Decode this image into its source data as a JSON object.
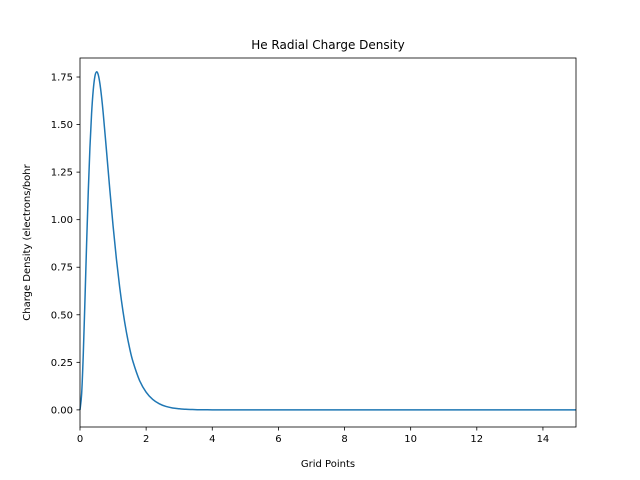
{
  "chart_data": {
    "type": "line",
    "title": "He Radial Charge Density",
    "xlabel": "Grid Points",
    "ylabel": "Charge Density (electrons/bohr",
    "xlim": [
      0,
      15
    ],
    "ylim": [
      -0.09,
      1.85
    ],
    "xticks": [
      0,
      2,
      4,
      6,
      8,
      10,
      12,
      14
    ],
    "yticks": [
      0.0,
      0.25,
      0.5,
      0.75,
      1.0,
      1.25,
      1.5,
      1.75
    ],
    "xtick_labels": [
      "0",
      "2",
      "4",
      "6",
      "8",
      "10",
      "12",
      "14"
    ],
    "ytick_labels": [
      "0.00",
      "0.25",
      "0.50",
      "0.75",
      "1.00",
      "1.25",
      "1.50",
      "1.75"
    ],
    "grid": false,
    "series": [
      {
        "color": "#1f77b4",
        "x": [
          0.0,
          0.05,
          0.1,
          0.15,
          0.2,
          0.25,
          0.3,
          0.35,
          0.4,
          0.45,
          0.5,
          0.55,
          0.6,
          0.65,
          0.7,
          0.8,
          0.9,
          1.0,
          1.1,
          1.2,
          1.3,
          1.4,
          1.5,
          1.6,
          1.8,
          2.0,
          2.2,
          2.4,
          2.6,
          2.8,
          3.0,
          3.2,
          3.4,
          3.6,
          3.8,
          4.0,
          4.5,
          5.0,
          5.5,
          6.0,
          7.0,
          8.0,
          9.0,
          10.0,
          11.0,
          12.0,
          13.0,
          14.0,
          15.0
        ],
        "y": [
          0.0,
          0.085,
          0.297,
          0.578,
          0.874,
          1.148,
          1.378,
          1.557,
          1.681,
          1.753,
          1.777,
          1.763,
          1.718,
          1.649,
          1.563,
          1.365,
          1.161,
          0.968,
          0.795,
          0.645,
          0.518,
          0.412,
          0.325,
          0.255,
          0.155,
          0.093,
          0.055,
          0.032,
          0.018,
          0.01,
          0.006,
          0.003,
          0.002,
          0.001,
          0.0006,
          0.0003,
          0.0001,
          0.0,
          0.0,
          0.0,
          0.0,
          0.0,
          0.0,
          0.0,
          0.0,
          0.0,
          0.0,
          0.0,
          0.0
        ]
      }
    ]
  }
}
